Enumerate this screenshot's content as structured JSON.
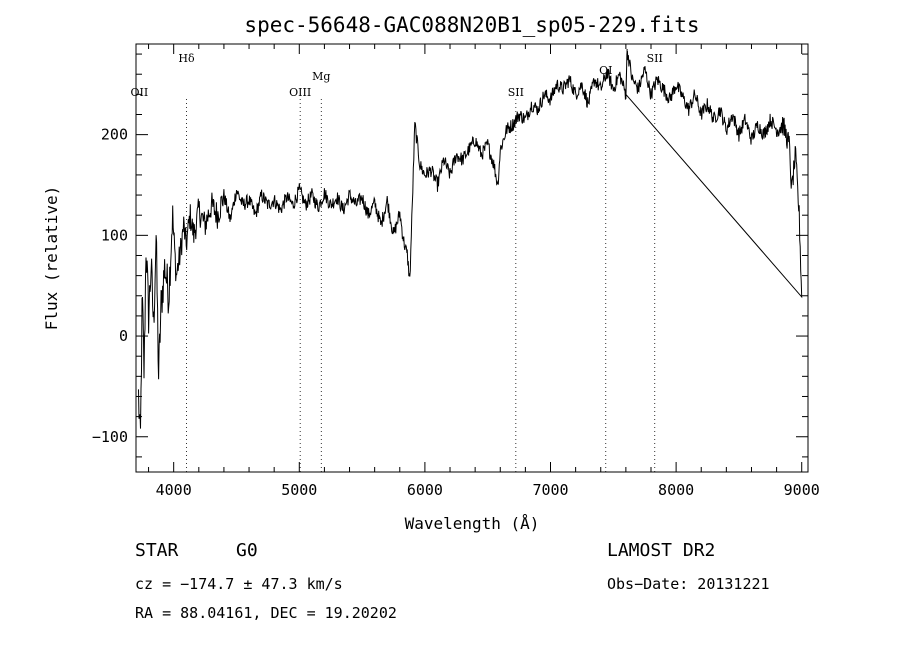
{
  "chart_data": {
    "type": "line",
    "title": "spec-56648-GAC088N20B1_sp05-229.fits",
    "xlabel": "Wavelength (Å)",
    "ylabel": "Flux (relative)",
    "xlim": [
      3700,
      9050
    ],
    "ylim": [
      -135,
      290
    ],
    "x_ticks": [
      4000,
      5000,
      6000,
      7000,
      8000,
      9000
    ],
    "x_tick_labels": [
      "4000",
      "5000",
      "6000",
      "7000",
      "8000",
      "9000"
    ],
    "y_ticks": [
      -100,
      0,
      100,
      200
    ],
    "y_tick_labels": [
      "−100",
      "0",
      "100",
      "200"
    ],
    "series": [
      {
        "x": [
          3720,
          3735,
          3750,
          3765,
          3780,
          3800,
          3820,
          3840,
          3860,
          3880,
          3900,
          3930,
          3960,
          3990,
          4020,
          4050,
          4080,
          4100,
          4130,
          4160,
          4200,
          4250,
          4300,
          4350,
          4400,
          4450,
          4500,
          4550,
          4600,
          4650,
          4700,
          4750,
          4800,
          4850,
          4900,
          4950,
          5000,
          5050,
          5100,
          5150,
          5200,
          5250,
          5300,
          5350,
          5400,
          5450,
          5500,
          5550,
          5600,
          5650,
          5700,
          5750,
          5800,
          5830,
          5860,
          5880,
          5900,
          5920,
          5940,
          5960,
          6000,
          6050,
          6100,
          6150,
          6200,
          6250,
          6300,
          6350,
          6400,
          6450,
          6500,
          6550,
          6580,
          6600,
          6650,
          6700,
          6750,
          6800,
          6850,
          6900,
          6950,
          7000,
          7050,
          7100,
          7150,
          7200,
          7250,
          7300,
          7350,
          7400,
          7450,
          7500,
          7550,
          7600,
          7610,
          7650,
          7700,
          7750,
          7800,
          7850,
          7900,
          7950,
          8000,
          8050,
          8100,
          8150,
          8200,
          8250,
          8300,
          8350,
          8400,
          8450,
          8500,
          8550,
          8600,
          8650,
          8700,
          8750,
          8800,
          8850,
          8900,
          8920,
          8950,
          8980,
          9000
        ],
        "y": [
          -60,
          -110,
          40,
          -40,
          90,
          20,
          70,
          10,
          100,
          -40,
          30,
          70,
          40,
          120,
          60,
          80,
          110,
          90,
          120,
          100,
          125,
          110,
          130,
          120,
          140,
          115,
          145,
          130,
          135,
          120,
          140,
          130,
          135,
          125,
          138,
          130,
          145,
          130,
          140,
          128,
          142,
          130,
          138,
          125,
          140,
          130,
          138,
          120,
          132,
          110,
          135,
          100,
          122,
          95,
          80,
          55,
          130,
          210,
          190,
          170,
          160,
          165,
          150,
          175,
          160,
          180,
          175,
          185,
          195,
          180,
          190,
          170,
          150,
          185,
          205,
          210,
          220,
          215,
          230,
          225,
          240,
          235,
          250,
          245,
          255,
          240,
          250,
          230,
          255,
          245,
          262,
          245,
          260,
          240,
          285,
          255,
          245,
          265,
          240,
          255,
          245,
          235,
          250,
          238,
          225,
          240,
          220,
          230,
          215,
          225,
          205,
          220,
          200,
          215,
          195,
          210,
          200,
          215,
          205,
          210,
          190,
          145,
          180,
          120,
          40
        ]
      }
    ],
    "line_labels": [
      {
        "label": "OII",
        "x": 3727,
        "show_line": false
      },
      {
        "label": "Hδ",
        "x": 4102,
        "show_line": true
      },
      {
        "label": "OIII",
        "x": 5007,
        "show_line": true
      },
      {
        "label": "Mg",
        "x": 5175,
        "show_line": true
      },
      {
        "label": "SII",
        "x": 6724,
        "show_line": true
      },
      {
        "label": "OI",
        "x": 7440,
        "show_line": true
      },
      {
        "label": "SII",
        "x": 7830,
        "show_line": true
      }
    ]
  },
  "footer": {
    "object_type": "STAR",
    "subclass": "G0",
    "survey": "LAMOST DR2",
    "velocity": "cz = −174.7 ± 47.3 km/s",
    "obs_date": "Obs−Date: 20131221",
    "coords": "RA =  88.04161, DEC =  19.20202"
  }
}
